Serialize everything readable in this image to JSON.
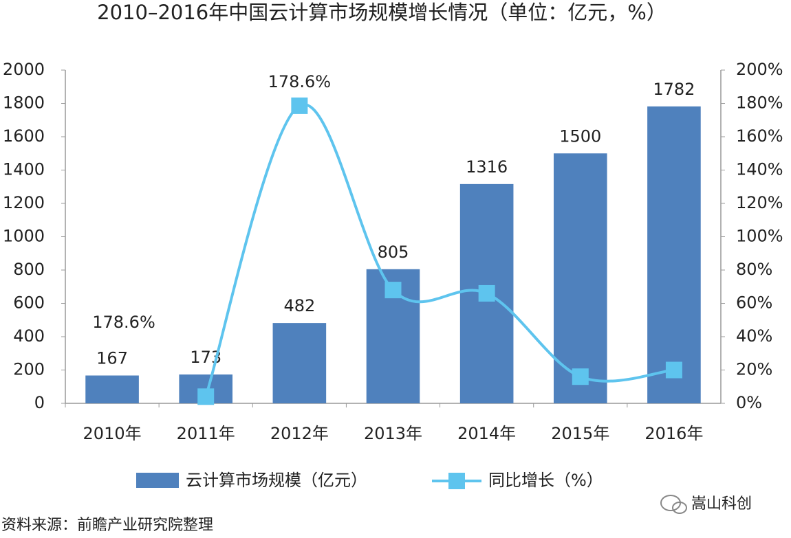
{
  "chart_data": {
    "type": "bar_line",
    "title": "2010–2016年中国云计算市场规模增长情况（单位：亿元，%）",
    "categories": [
      "2010年",
      "2011年",
      "2012年",
      "2013年",
      "2014年",
      "2015年",
      "2016年"
    ],
    "series": [
      {
        "name": "云计算市场规模（亿元）",
        "type": "bar",
        "color": "#4f81bd",
        "values": [
          167,
          173,
          482,
          805,
          1316,
          1500,
          1782
        ]
      },
      {
        "name": "同比增长（%）",
        "type": "line",
        "axis": "y2",
        "color": "#5ec4ee",
        "values": [
          null,
          4,
          178.6,
          68,
          66,
          16,
          20
        ],
        "value_labels": [
          null,
          null,
          "178.6%",
          null,
          null,
          null,
          null
        ]
      }
    ],
    "annotations": [
      {
        "text": "178.6%"
      }
    ],
    "ylim": [
      0,
      2000
    ],
    "yticks": [
      0,
      200,
      400,
      600,
      800,
      1000,
      1200,
      1400,
      1600,
      1800,
      2000
    ],
    "y2lim": [
      0,
      200
    ],
    "y2ticks": [
      {
        "value": 0,
        "label": "0%"
      },
      {
        "value": 20,
        "label": "20%"
      },
      {
        "value": 40,
        "label": "40%"
      },
      {
        "value": 60,
        "label": "60%"
      },
      {
        "value": 80,
        "label": "80%"
      },
      {
        "value": 100,
        "label": "100%"
      },
      {
        "value": 120,
        "label": "120%"
      },
      {
        "value": 140,
        "label": "140%"
      },
      {
        "value": 160,
        "label": "160%"
      },
      {
        "value": 180,
        "label": "180%"
      },
      {
        "value": 200,
        "label": "200%"
      }
    ],
    "source": "资料来源：前瞻产业研究院整理",
    "watermark": "嵩山科创"
  }
}
